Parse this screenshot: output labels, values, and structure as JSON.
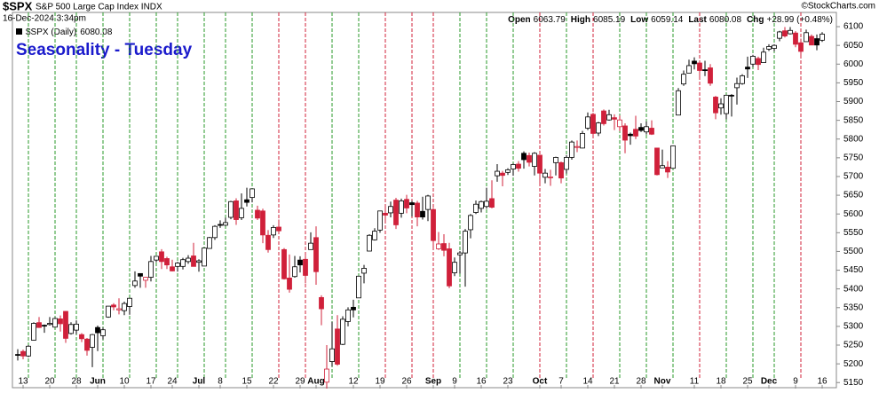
{
  "header": {
    "symbol": "$SPX",
    "name": "S&P 500 Large Cap Index INDX",
    "timestamp": "16-Dec-2024 3:34pm",
    "credit": "©StockCharts.com",
    "quote": [
      {
        "label": "Open",
        "value": 6063.79
      },
      {
        "label": "High",
        "value": 6085.19
      },
      {
        "label": "Low",
        "value": 6059.14
      },
      {
        "label": "Last",
        "value": 6080.08
      },
      {
        "label": "Chg",
        "value": "+28.99 (+0.48%)"
      }
    ]
  },
  "chart_data": {
    "type": "candlestick",
    "title": "Seasonality - Tuesday",
    "legend": {
      "label": "$SPX (Daily)",
      "value": 6080.08
    },
    "marker_weekday": "Tuesday",
    "marker_up_color": "#2a9a2a",
    "marker_down_color": "#d0203a",
    "up_color": "#000000",
    "down_color": "#d0203a",
    "ylim": [
      5134,
      6138
    ],
    "yticks": [
      5150,
      5200,
      5250,
      5300,
      5350,
      5400,
      5450,
      5500,
      5550,
      5600,
      5650,
      5700,
      5750,
      5800,
      5850,
      5900,
      5950,
      6000,
      6050,
      6100
    ],
    "xticks": [
      {
        "value": "2024-05-13",
        "label": "13"
      },
      {
        "value": "2024-05-20",
        "label": "20"
      },
      {
        "value": "2024-05-28",
        "label": "28"
      },
      {
        "value": "2024-06-03",
        "label": "Jun"
      },
      {
        "value": "2024-06-10",
        "label": "10"
      },
      {
        "value": "2024-06-17",
        "label": "17"
      },
      {
        "value": "2024-06-24",
        "label": "24"
      },
      {
        "value": "2024-07-01",
        "label": "Jul"
      },
      {
        "value": "2024-07-08",
        "label": "8"
      },
      {
        "value": "2024-07-15",
        "label": "15"
      },
      {
        "value": "2024-07-22",
        "label": "22"
      },
      {
        "value": "2024-07-29",
        "label": "29"
      },
      {
        "value": "2024-08-01",
        "label": "Aug"
      },
      {
        "value": "2024-08-12",
        "label": "12"
      },
      {
        "value": "2024-08-19",
        "label": "19"
      },
      {
        "value": "2024-08-26",
        "label": "26"
      },
      {
        "value": "2024-09-03",
        "label": "Sep"
      },
      {
        "value": "2024-09-09",
        "label": "9"
      },
      {
        "value": "2024-09-16",
        "label": "16"
      },
      {
        "value": "2024-09-23",
        "label": "23"
      },
      {
        "value": "2024-10-01",
        "label": "Oct"
      },
      {
        "value": "2024-10-07",
        "label": "7"
      },
      {
        "value": "2024-10-14",
        "label": "14"
      },
      {
        "value": "2024-10-21",
        "label": "21"
      },
      {
        "value": "2024-10-28",
        "label": "28"
      },
      {
        "value": "2024-11-01",
        "label": "Nov"
      },
      {
        "value": "2024-11-11",
        "label": "11"
      },
      {
        "value": "2024-11-18",
        "label": "18"
      },
      {
        "value": "2024-11-25",
        "label": "25"
      },
      {
        "value": "2024-12-02",
        "label": "Dec"
      },
      {
        "value": "2024-12-09",
        "label": "9"
      },
      {
        "value": "2024-12-16",
        "label": "16"
      }
    ],
    "x": [
      "2024-05-10",
      "2024-05-13",
      "2024-05-14",
      "2024-05-15",
      "2024-05-16",
      "2024-05-17",
      "2024-05-20",
      "2024-05-21",
      "2024-05-22",
      "2024-05-23",
      "2024-05-24",
      "2024-05-28",
      "2024-05-29",
      "2024-05-30",
      "2024-05-31",
      "2024-06-03",
      "2024-06-04",
      "2024-06-05",
      "2024-06-06",
      "2024-06-07",
      "2024-06-10",
      "2024-06-11",
      "2024-06-12",
      "2024-06-13",
      "2024-06-14",
      "2024-06-17",
      "2024-06-18",
      "2024-06-20",
      "2024-06-21",
      "2024-06-24",
      "2024-06-25",
      "2024-06-26",
      "2024-06-27",
      "2024-06-28",
      "2024-07-01",
      "2024-07-02",
      "2024-07-03",
      "2024-07-05",
      "2024-07-08",
      "2024-07-09",
      "2024-07-10",
      "2024-07-11",
      "2024-07-12",
      "2024-07-15",
      "2024-07-16",
      "2024-07-17",
      "2024-07-18",
      "2024-07-19",
      "2024-07-22",
      "2024-07-23",
      "2024-07-24",
      "2024-07-25",
      "2024-07-26",
      "2024-07-29",
      "2024-07-30",
      "2024-07-31",
      "2024-08-01",
      "2024-08-02",
      "2024-08-05",
      "2024-08-06",
      "2024-08-07",
      "2024-08-08",
      "2024-08-09",
      "2024-08-12",
      "2024-08-13",
      "2024-08-14",
      "2024-08-15",
      "2024-08-16",
      "2024-08-19",
      "2024-08-20",
      "2024-08-21",
      "2024-08-22",
      "2024-08-23",
      "2024-08-26",
      "2024-08-27",
      "2024-08-28",
      "2024-08-29",
      "2024-08-30",
      "2024-09-03",
      "2024-09-04",
      "2024-09-05",
      "2024-09-06",
      "2024-09-09",
      "2024-09-10",
      "2024-09-11",
      "2024-09-12",
      "2024-09-13",
      "2024-09-16",
      "2024-09-17",
      "2024-09-18",
      "2024-09-19",
      "2024-09-20",
      "2024-09-23",
      "2024-09-24",
      "2024-09-25",
      "2024-09-26",
      "2024-09-27",
      "2024-09-30",
      "2024-10-01",
      "2024-10-02",
      "2024-10-03",
      "2024-10-04",
      "2024-10-07",
      "2024-10-08",
      "2024-10-09",
      "2024-10-10",
      "2024-10-11",
      "2024-10-14",
      "2024-10-15",
      "2024-10-16",
      "2024-10-17",
      "2024-10-18",
      "2024-10-21",
      "2024-10-22",
      "2024-10-23",
      "2024-10-24",
      "2024-10-25",
      "2024-10-28",
      "2024-10-29",
      "2024-10-30",
      "2024-10-31",
      "2024-11-01",
      "2024-11-04",
      "2024-11-05",
      "2024-11-06",
      "2024-11-07",
      "2024-11-08",
      "2024-11-11",
      "2024-11-12",
      "2024-11-13",
      "2024-11-14",
      "2024-11-15",
      "2024-11-18",
      "2024-11-19",
      "2024-11-20",
      "2024-11-21",
      "2024-11-22",
      "2024-11-25",
      "2024-11-26",
      "2024-11-27",
      "2024-11-29",
      "2024-12-02",
      "2024-12-03",
      "2024-12-04",
      "2024-12-05",
      "2024-12-06",
      "2024-12-09",
      "2024-12-10",
      "2024-12-11",
      "2024-12-12",
      "2024-12-13",
      "2024-12-16"
    ],
    "ohlc": [
      [
        5225,
        5239,
        5209,
        5223
      ],
      [
        5233,
        5238,
        5212,
        5221
      ],
      [
        5221,
        5250,
        5218,
        5247
      ],
      [
        5263,
        5311,
        5262,
        5308
      ],
      [
        5310,
        5325,
        5296,
        5297
      ],
      [
        5303,
        5305,
        5283,
        5303
      ],
      [
        5305,
        5325,
        5302,
        5308
      ],
      [
        5298,
        5324,
        5297,
        5321
      ],
      [
        5320,
        5329,
        5286,
        5307
      ],
      [
        5340,
        5341,
        5256,
        5268
      ],
      [
        5281,
        5311,
        5278,
        5305
      ],
      [
        5290,
        5316,
        5279,
        5306
      ],
      [
        5278,
        5282,
        5258,
        5267
      ],
      [
        5266,
        5269,
        5222,
        5236
      ],
      [
        5244,
        5280,
        5191,
        5278
      ],
      [
        5297,
        5302,
        5234,
        5283
      ],
      [
        5275,
        5297,
        5265,
        5291
      ],
      [
        5325,
        5354,
        5323,
        5354
      ],
      [
        5357,
        5362,
        5343,
        5352
      ],
      [
        5344,
        5375,
        5332,
        5347
      ],
      [
        5342,
        5366,
        5330,
        5361
      ],
      [
        5353,
        5376,
        5331,
        5375
      ],
      [
        5409,
        5447,
        5403,
        5421
      ],
      [
        5441,
        5441,
        5403,
        5434
      ],
      [
        5423,
        5432,
        5403,
        5431
      ],
      [
        5431,
        5488,
        5420,
        5473
      ],
      [
        5477,
        5487,
        5471,
        5487
      ],
      [
        5499,
        5506,
        5453,
        5473
      ],
      [
        5481,
        5486,
        5453,
        5464
      ],
      [
        5459,
        5478,
        5447,
        5448
      ],
      [
        5460,
        5472,
        5446,
        5469
      ],
      [
        5460,
        5483,
        5452,
        5478
      ],
      [
        5473,
        5490,
        5467,
        5482
      ],
      [
        5488,
        5523,
        5460,
        5460
      ],
      [
        5471,
        5479,
        5446,
        5475
      ],
      [
        5461,
        5509,
        5461,
        5509
      ],
      [
        5508,
        5539,
        5507,
        5537
      ],
      [
        5537,
        5570,
        5531,
        5567
      ],
      [
        5572,
        5583,
        5563,
        5572
      ],
      [
        5570,
        5590,
        5568,
        5577
      ],
      [
        5591,
        5635,
        5586,
        5633
      ],
      [
        5635,
        5642,
        5571,
        5585
      ],
      [
        5590,
        5655,
        5584,
        5615
      ],
      [
        5638,
        5670,
        5620,
        5631
      ],
      [
        5644,
        5667,
        5631,
        5667
      ],
      [
        5610,
        5622,
        5584,
        5589
      ],
      [
        5608,
        5614,
        5522,
        5544
      ],
      [
        5543,
        5557,
        5497,
        5505
      ],
      [
        5544,
        5570,
        5536,
        5564
      ],
      [
        5565,
        5585,
        5550,
        5555
      ],
      [
        5505,
        5509,
        5425,
        5427
      ],
      [
        5429,
        5492,
        5390,
        5399
      ],
      [
        5433,
        5488,
        5430,
        5459
      ],
      [
        5477,
        5487,
        5444,
        5464
      ],
      [
        5479,
        5489,
        5415,
        5436
      ],
      [
        5505,
        5551,
        5505,
        5522
      ],
      [
        5537,
        5567,
        5411,
        5446
      ],
      [
        5377,
        5383,
        5303,
        5347
      ],
      [
        5151,
        5250,
        5120,
        5186
      ],
      [
        5206,
        5312,
        5193,
        5240
      ],
      [
        5293,
        5330,
        5195,
        5199
      ],
      [
        5252,
        5327,
        5250,
        5319
      ],
      [
        5313,
        5351,
        5300,
        5344
      ],
      [
        5351,
        5371,
        5324,
        5344
      ],
      [
        5376,
        5435,
        5376,
        5434
      ],
      [
        5442,
        5464,
        5415,
        5455
      ],
      [
        5501,
        5546,
        5501,
        5543
      ],
      [
        5531,
        5562,
        5529,
        5554
      ],
      [
        5557,
        5608,
        5550,
        5608
      ],
      [
        5602,
        5620,
        5582,
        5597
      ],
      [
        5603,
        5633,
        5591,
        5620
      ],
      [
        5637,
        5643,
        5560,
        5571
      ],
      [
        5602,
        5641,
        5590,
        5635
      ],
      [
        5639,
        5651,
        5602,
        5616
      ],
      [
        5630,
        5635,
        5593,
        5625
      ],
      [
        5629,
        5635,
        5567,
        5592
      ],
      [
        5607,
        5646,
        5585,
        5592
      ],
      [
        5612,
        5651,
        5581,
        5648
      ],
      [
        5612,
        5616,
        5511,
        5529
      ],
      [
        5507,
        5552,
        5504,
        5520
      ],
      [
        5521,
        5546,
        5487,
        5503
      ],
      [
        5507,
        5523,
        5402,
        5408
      ],
      [
        5443,
        5484,
        5434,
        5471
      ],
      [
        5491,
        5501,
        5441,
        5496
      ],
      [
        5496,
        5560,
        5406,
        5554
      ],
      [
        5558,
        5600,
        5535,
        5596
      ],
      [
        5604,
        5636,
        5600,
        5626
      ],
      [
        5615,
        5636,
        5604,
        5633
      ],
      [
        5620,
        5670,
        5614,
        5634
      ],
      [
        5641,
        5690,
        5615,
        5618
      ],
      [
        5702,
        5733,
        5686,
        5714
      ],
      [
        5709,
        5715,
        5674,
        5703
      ],
      [
        5711,
        5722,
        5704,
        5718
      ],
      [
        5720,
        5735,
        5702,
        5732
      ],
      [
        5733,
        5741,
        5713,
        5722
      ],
      [
        5762,
        5767,
        5721,
        5745
      ],
      [
        5756,
        5764,
        5727,
        5738
      ],
      [
        5727,
        5765,
        5703,
        5762
      ],
      [
        5757,
        5757,
        5681,
        5709
      ],
      [
        5698,
        5720,
        5682,
        5709
      ],
      [
        5698,
        5718,
        5675,
        5699
      ],
      [
        5737,
        5753,
        5703,
        5751
      ],
      [
        5737,
        5740,
        5682,
        5696
      ],
      [
        5719,
        5757,
        5708,
        5751
      ],
      [
        5751,
        5796,
        5745,
        5792
      ],
      [
        5778,
        5796,
        5765,
        5780
      ],
      [
        5776,
        5822,
        5775,
        5815
      ],
      [
        5829,
        5871,
        5824,
        5859
      ],
      [
        5866,
        5870,
        5804,
        5815
      ],
      [
        5816,
        5846,
        5808,
        5843
      ],
      [
        5875,
        5879,
        5836,
        5841
      ],
      [
        5851,
        5878,
        5849,
        5865
      ],
      [
        5857,
        5866,
        5824,
        5853
      ],
      [
        5833,
        5863,
        5821,
        5851
      ],
      [
        5835,
        5842,
        5762,
        5797
      ],
      [
        5813,
        5817,
        5785,
        5809
      ],
      [
        5826,
        5862,
        5800,
        5808
      ],
      [
        5831,
        5842,
        5819,
        5823
      ],
      [
        5819,
        5847,
        5812,
        5833
      ],
      [
        5829,
        5850,
        5811,
        5813
      ],
      [
        5776,
        5776,
        5703,
        5705
      ],
      [
        5723,
        5772,
        5723,
        5729
      ],
      [
        5725,
        5741,
        5696,
        5712
      ],
      [
        5722,
        5783,
        5722,
        5782
      ],
      [
        5864,
        5936,
        5864,
        5929
      ],
      [
        5947,
        5983,
        5942,
        5973
      ],
      [
        5976,
        6012,
        5976,
        5996
      ],
      [
        6008,
        6018,
        5986,
        6001
      ],
      [
        6003,
        6010,
        5966,
        5983
      ],
      [
        5985,
        6009,
        5968,
        5985
      ],
      [
        5990,
        6000,
        5942,
        5949
      ],
      [
        5912,
        5915,
        5853,
        5870
      ],
      [
        5883,
        5909,
        5865,
        5894
      ],
      [
        5868,
        5918,
        5853,
        5917
      ],
      [
        5917,
        5920,
        5860,
        5917
      ],
      [
        5937,
        5964,
        5892,
        5948
      ],
      [
        5948,
        5973,
        5945,
        5969
      ],
      [
        5992,
        6020,
        5963,
        5987
      ],
      [
        6000,
        6025,
        5992,
        6021
      ],
      [
        6015,
        6020,
        5984,
        5999
      ],
      [
        6004,
        6044,
        6003,
        6032
      ],
      [
        6040,
        6053,
        6035,
        6047
      ],
      [
        6042,
        6053,
        6034,
        6050
      ],
      [
        6069,
        6089,
        6061,
        6086
      ],
      [
        6089,
        6099,
        6071,
        6075
      ],
      [
        6081,
        6099,
        6079,
        6090
      ],
      [
        6083,
        6088,
        6045,
        6053
      ],
      [
        6057,
        6068,
        6024,
        6034
      ],
      [
        6060,
        6092,
        6060,
        6084
      ],
      [
        6074,
        6079,
        6051,
        6051
      ],
      [
        6068,
        6079,
        6037,
        6051
      ],
      [
        6063.79,
        6085.19,
        6059.14,
        6080.08
      ]
    ]
  }
}
